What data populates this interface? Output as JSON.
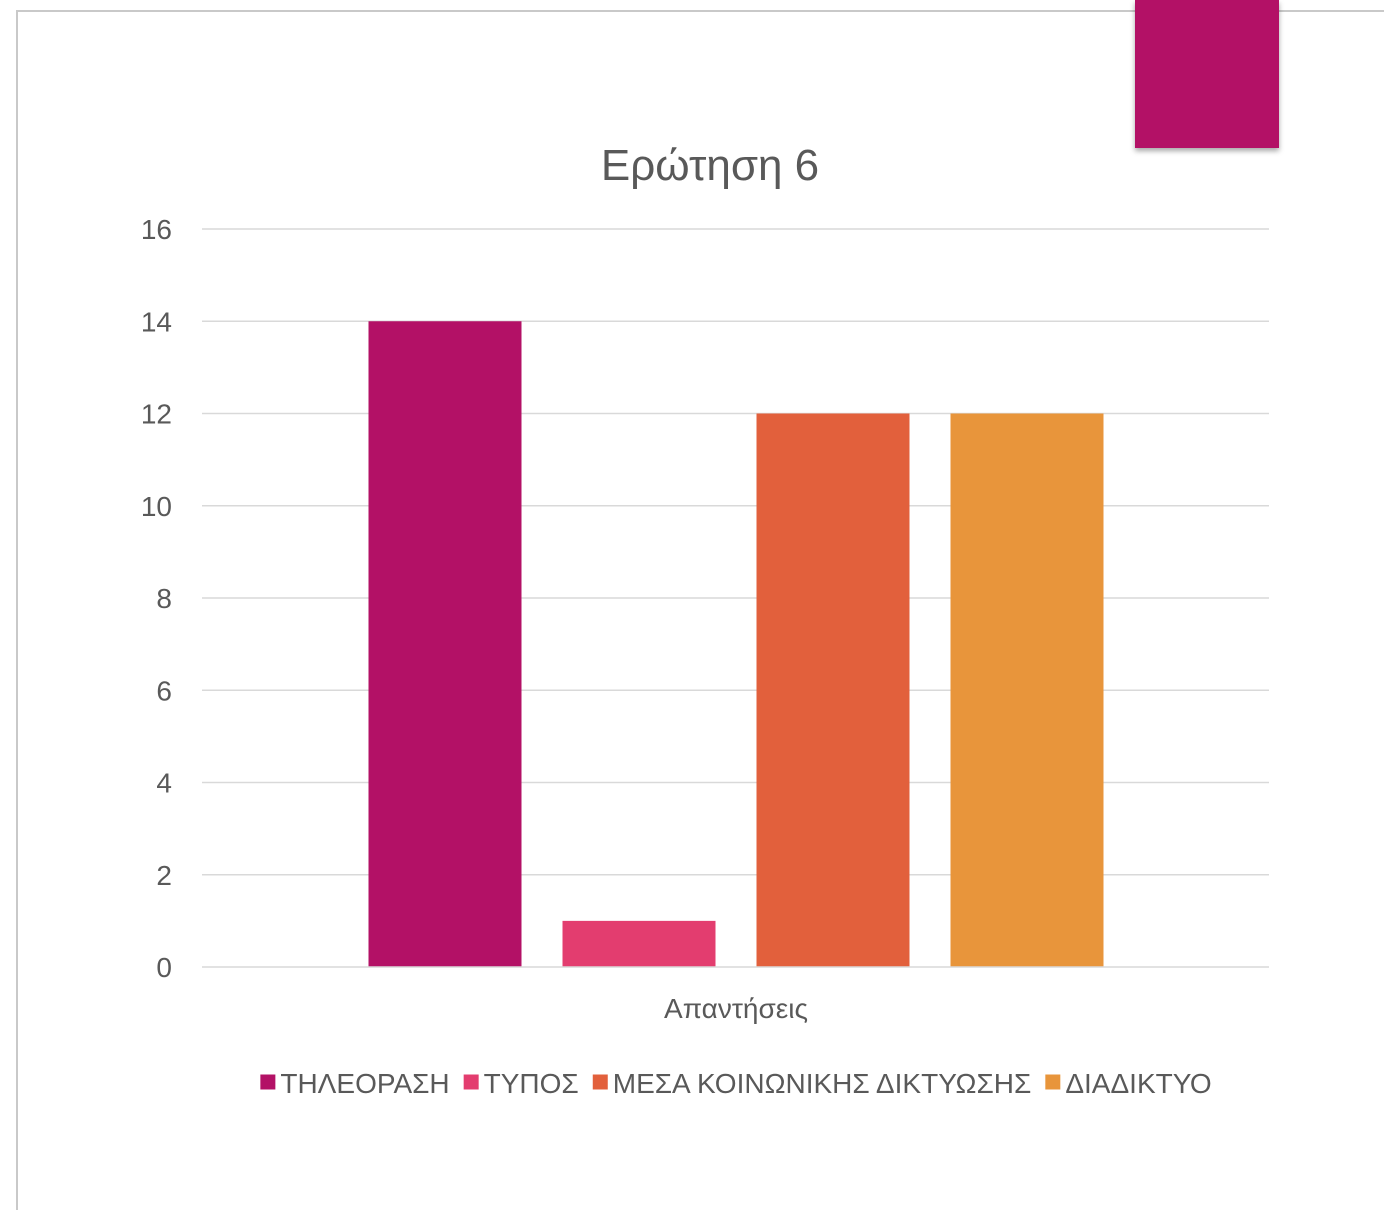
{
  "colors": {
    "accent": "#b31166",
    "gridline": "#d9d9d9",
    "text": "#595959"
  },
  "chart_data": {
    "type": "bar",
    "title": "Ερώτηση 6",
    "categories": [
      "Απαντήσεις"
    ],
    "xlabel": "",
    "ylabel": "",
    "ylim": [
      0,
      16
    ],
    "yticks": [
      0,
      2,
      4,
      6,
      8,
      10,
      12,
      14,
      16
    ],
    "grid": true,
    "legend_position": "bottom",
    "series": [
      {
        "name": "ΤΗΛΕΟΡΑΣΗ",
        "values": [
          14
        ],
        "color": "#b31166"
      },
      {
        "name": "ΤΥΠΟΣ",
        "values": [
          1
        ],
        "color": "#e33d6f"
      },
      {
        "name": "ΜΕΣΑ ΚΟΙΝΩΝΙΚΗΣ ΔΙΚΤΥΩΣΗΣ",
        "values": [
          12
        ],
        "color": "#e2603c"
      },
      {
        "name": "ΔΙΑΔΙΚΤΥΟ",
        "values": [
          12
        ],
        "color": "#e8953b"
      }
    ]
  }
}
